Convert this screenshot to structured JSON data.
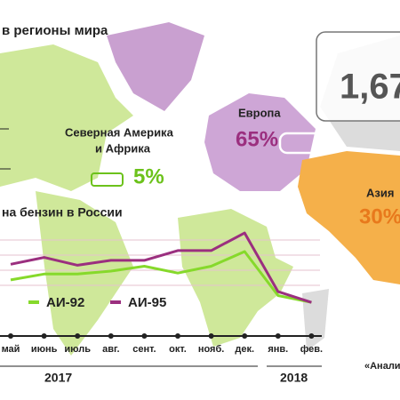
{
  "title": "в регионы мира",
  "total": "1,67",
  "regions": [
    {
      "label": "Северная Америка",
      "label2": "и Африка",
      "share": "5%"
    },
    {
      "label": "Европа",
      "share": "65%"
    },
    {
      "label": "Азия",
      "share": "30%"
    }
  ],
  "source": "«Анали",
  "years": [
    "2017",
    "2018"
  ],
  "chart_data": {
    "type": "line",
    "title": "на бензин в России",
    "categories": [
      "май",
      "июнь",
      "июль",
      "авг.",
      "сент.",
      "окт.",
      "нояб.",
      "дек.",
      "янв.",
      "фев."
    ],
    "ylim": [
      0,
      100
    ],
    "series": [
      {
        "name": "АИ-92",
        "color": "#86d92b",
        "values": [
          41,
          47,
          47,
          50,
          55,
          48,
          55,
          70,
          25,
          18
        ]
      },
      {
        "name": "АИ-95",
        "color": "#9b2f7f",
        "values": [
          57,
          64,
          56,
          61,
          61,
          71,
          71,
          89,
          29,
          18
        ]
      }
    ]
  }
}
